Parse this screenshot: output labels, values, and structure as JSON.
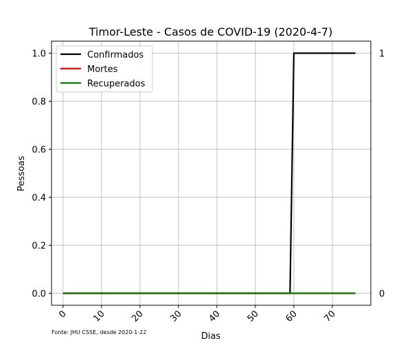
{
  "chart_data": {
    "type": "line",
    "title": "Timor-Leste - Casos de COVID-19 (2020-4-7)",
    "xlabel": "Dias",
    "ylabel": "Pessoas",
    "xlim": [
      -3,
      80
    ],
    "ylim": [
      -0.05,
      1.05
    ],
    "xticks": [
      0,
      10,
      20,
      30,
      40,
      50,
      60,
      70
    ],
    "xtick_labels": [
      "0",
      "10",
      "20",
      "30",
      "40",
      "50",
      "60",
      "70"
    ],
    "yticks": [
      0.0,
      0.2,
      0.4,
      0.6,
      0.8,
      1.0
    ],
    "ytick_labels": [
      "0.0",
      "0.2",
      "0.4",
      "0.6",
      "0.8",
      "1.0"
    ],
    "grid": true,
    "legend_position": "top-left",
    "series": [
      {
        "name": "Confirmados",
        "color": "#000000",
        "x": [
          0,
          59,
          60,
          76
        ],
        "y": [
          0,
          0,
          1,
          1
        ]
      },
      {
        "name": "Mortes",
        "color": "#ff0000",
        "x": [
          0,
          76
        ],
        "y": [
          0,
          0
        ]
      },
      {
        "name": "Recuperados",
        "color": "#008000",
        "x": [
          0,
          76
        ],
        "y": [
          0,
          0
        ]
      }
    ],
    "right_annotations": [
      {
        "text": "1",
        "y": 1
      },
      {
        "text": "0",
        "y": 0
      }
    ],
    "source_note": "Fonte: JHU CSSE, desde 2020-1-22"
  }
}
